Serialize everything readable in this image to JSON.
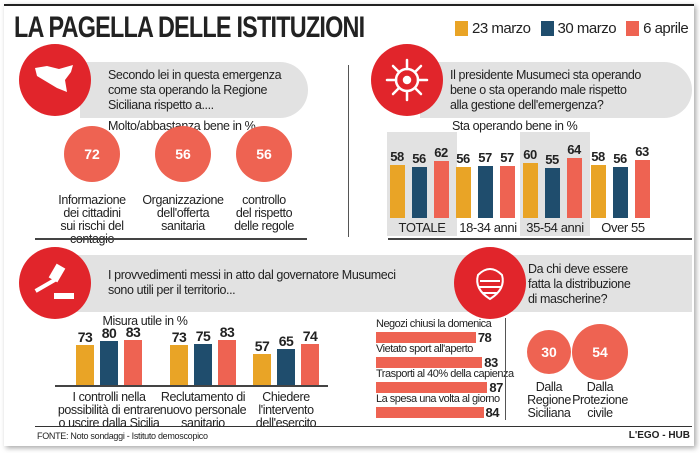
{
  "title": "LA PAGELLA DELLE ISTITUZIONI",
  "legend": [
    {
      "label": "23 marzo",
      "color": "#e9a426"
    },
    {
      "label": "30 marzo",
      "color": "#1f4d6d"
    },
    {
      "label": "6 aprile",
      "color": "#ee6352"
    }
  ],
  "colors": {
    "icon_circle": "#e1252b",
    "band": "#e2e2e2"
  },
  "q1": {
    "icon": "sicily-map-icon",
    "question": [
      "Secondo lei in questa emergenza",
      "come sta operando la Regione",
      "Siciliana rispetto a...."
    ],
    "subtitle": "Molto/abbastanza bene in %"
  },
  "q2": {
    "icon": "virus-icon",
    "question": [
      "Il presidente Musumeci sta operando",
      "bene o sta operando male rispetto",
      "alla gestione dell'emergenza?"
    ],
    "subtitle": "Sta operando bene in %"
  },
  "q3": {
    "icon": "gavel-icon",
    "question": [
      "I provvedimenti messi in atto dal governatore Musumeci",
      "sono utili per il territorio..."
    ],
    "subtitle": "Misura utile in %"
  },
  "q4": {
    "icon": "face-mask-icon",
    "question": [
      "Da chi deve essere",
      "fatta la distribuzione",
      "di mascherine?"
    ]
  },
  "chart_data": [
    {
      "type": "bubble",
      "title": "Molto/abbastanza bene in %",
      "categories": [
        "Informazione dei cittadini sui rischi del contagio",
        "Organizzazione dell'offerta sanitaria",
        "controllo del rispetto delle regole"
      ],
      "values": [
        72,
        56,
        56
      ],
      "labels": [
        [
          "Informazione",
          "dei cittadini",
          "sui rischi del contagio"
        ],
        [
          "Organizzazione",
          "dell'offerta",
          "sanitaria"
        ],
        [
          "controllo",
          "del rispetto",
          "delle regole"
        ]
      ]
    },
    {
      "type": "bar",
      "title": "Sta operando bene in %",
      "categories": [
        "TOTALE",
        "18-34 anni",
        "35-54 anni",
        "Over 55"
      ],
      "series": [
        {
          "name": "23 marzo",
          "values": [
            58,
            56,
            60,
            58
          ]
        },
        {
          "name": "30 marzo",
          "values": [
            56,
            57,
            55,
            56
          ]
        },
        {
          "name": "6 aprile",
          "values": [
            62,
            57,
            64,
            63
          ]
        }
      ]
    },
    {
      "type": "bar",
      "title": "Misura utile in %",
      "categories": [
        "I controlli nella possibilità di entrare o uscire dalla Sicilia",
        "Reclutamento di nuovo personale sanitario",
        "Chiedere l'intervento dell'esercito"
      ],
      "labels": [
        [
          "I controlli nella",
          "possibilità di entrare",
          "o uscire dalla Sicilia"
        ],
        [
          "Reclutamento di",
          "nuovo personale",
          "sanitario"
        ],
        [
          "Chiedere",
          "l'intervento",
          "dell'esercito"
        ]
      ],
      "series": [
        {
          "name": "23 marzo",
          "values": [
            73,
            73,
            57
          ]
        },
        {
          "name": "30 marzo",
          "values": [
            80,
            75,
            65
          ]
        },
        {
          "name": "6 aprile",
          "values": [
            83,
            83,
            74
          ]
        }
      ]
    },
    {
      "type": "hbar",
      "categories": [
        "Negozi chiusi la domenica",
        "Vietato sport all'aperto",
        "Trasporti al 40% della capienza",
        "La spesa una volta al giorno"
      ],
      "values": [
        78,
        83,
        87,
        84
      ]
    },
    {
      "type": "bubble",
      "categories": [
        "Dalla Regione Siciliana",
        "Dalla Protezione civile"
      ],
      "labels": [
        [
          "Dalla",
          "Regione",
          "Siciliana"
        ],
        [
          "Dalla",
          "Protezione",
          "civile"
        ]
      ],
      "values": [
        30,
        54
      ]
    }
  ],
  "footer": {
    "source": "FONTE: Noto sondaggi - Istituto demoscopico",
    "brand": "L'EGO - HUB"
  }
}
